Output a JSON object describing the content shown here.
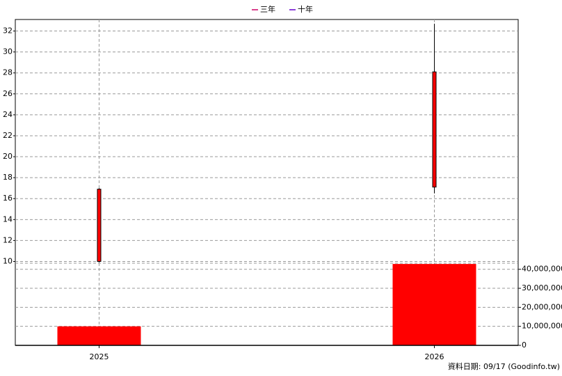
{
  "chart_data": {
    "type": "candlestick",
    "legend": [
      {
        "name": "三年",
        "color": "#cc0066"
      },
      {
        "name": "十年",
        "color": "#6600cc"
      }
    ],
    "x": [
      2025,
      2026
    ],
    "open": [
      10,
      17.1
    ],
    "high": [
      17,
      32.7
    ],
    "low": [
      9.9,
      16.5
    ],
    "close": [
      16.9,
      28.1
    ],
    "volume": [
      10000000,
      42800000
    ],
    "up_color": "#ff0000",
    "volume_color": "#ff0000",
    "xlim": [
      2024.75,
      2026.25
    ],
    "xticks": [
      2025,
      2026
    ],
    "ylim": [
      9.7,
      33.1
    ],
    "yticks": [
      10,
      12,
      14,
      16,
      18,
      20,
      22,
      24,
      26,
      28,
      30,
      32
    ],
    "y2lim": [
      0,
      43200000
    ],
    "y2ticks": [
      {
        "value": 0,
        "label": "0"
      },
      {
        "value": 10000000,
        "label": "10,000,000"
      },
      {
        "value": 20000000,
        "label": "20,000,000"
      },
      {
        "value": 30000000,
        "label": "30,000,000"
      },
      {
        "value": 40000000,
        "label": "40,000,000"
      }
    ],
    "grid": true,
    "source": "資料日期: 09/17  (Goodinfo.tw)"
  }
}
